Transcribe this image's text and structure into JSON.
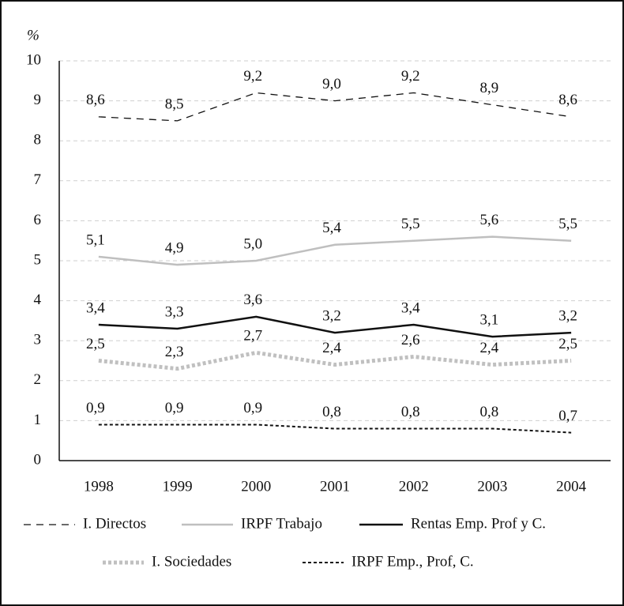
{
  "chart_data": {
    "type": "line",
    "y_label": "%",
    "categories": [
      "1998",
      "1999",
      "2000",
      "2001",
      "2002",
      "2003",
      "2004"
    ],
    "ylim": [
      0,
      10
    ],
    "yticks": [
      0,
      1,
      2,
      3,
      4,
      5,
      6,
      7,
      8,
      9,
      10
    ],
    "grid": true,
    "series": [
      {
        "name": "I. Directos",
        "color": "#111111",
        "style": "dashed",
        "values": [
          8.6,
          8.5,
          9.2,
          9.0,
          9.2,
          8.9,
          8.6
        ],
        "value_labels": [
          "8,6",
          "8,5",
          "9,2",
          "9,0",
          "9,2",
          "8,9",
          "8,6"
        ]
      },
      {
        "name": "IRPF Trabajo",
        "color": "#bfbfbf",
        "style": "solid",
        "values": [
          5.1,
          4.9,
          5.0,
          5.4,
          5.5,
          5.6,
          5.5
        ],
        "value_labels": [
          "5,1",
          "4,9",
          "5,0",
          "5,4",
          "5,5",
          "5,6",
          "5,5"
        ]
      },
      {
        "name": "Rentas Emp. Prof y C.",
        "color": "#111111",
        "style": "solid",
        "values": [
          3.4,
          3.3,
          3.6,
          3.2,
          3.4,
          3.1,
          3.2
        ],
        "value_labels": [
          "3,4",
          "3,3",
          "3,6",
          "3,2",
          "3,4",
          "3,1",
          "3,2"
        ]
      },
      {
        "name": "I. Sociedades",
        "color": "#c0c0c0",
        "style": "dotted",
        "values": [
          2.5,
          2.3,
          2.7,
          2.4,
          2.6,
          2.4,
          2.5
        ],
        "value_labels": [
          "2,5",
          "2,3",
          "2,7",
          "2,4",
          "2,6",
          "2,4",
          "2,5"
        ]
      },
      {
        "name": "IRPF Emp., Prof, C.",
        "color": "#111111",
        "style": "short-dashed",
        "values": [
          0.9,
          0.9,
          0.9,
          0.8,
          0.8,
          0.8,
          0.7
        ],
        "value_labels": [
          "0,9",
          "0,9",
          "0,9",
          "0,8",
          "0,8",
          "0,8",
          "0,7"
        ]
      }
    ]
  }
}
